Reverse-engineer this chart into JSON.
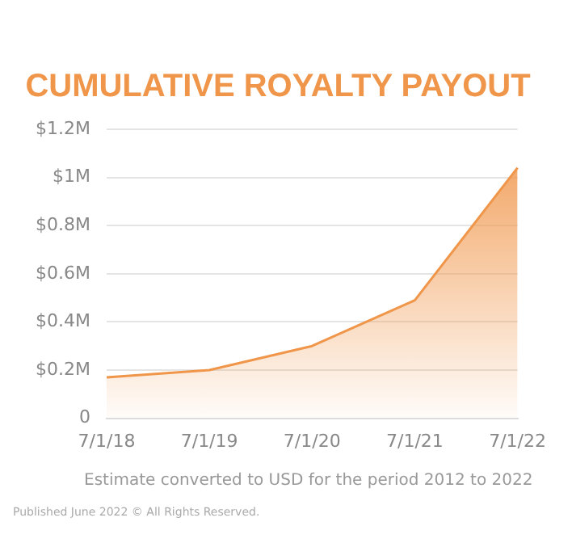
{
  "chart_data": {
    "type": "area",
    "title": "CUMULATIVE ROYALTY PAYOUT",
    "categories": [
      "7/1/18",
      "7/1/19",
      "7/1/20",
      "7/1/21",
      "7/1/22"
    ],
    "series": [
      {
        "color": "#f0964a",
        "values": [
          0.17,
          0.2,
          0.3,
          0.49,
          1.04
        ]
      }
    ],
    "ylim": [
      0,
      1.2
    ],
    "yticks": [
      {
        "value": 0,
        "label": "0"
      },
      {
        "value": 0.2,
        "label": "$0.2M"
      },
      {
        "value": 0.4,
        "label": "$0.4M"
      },
      {
        "value": 0.6,
        "label": "$0.6M"
      },
      {
        "value": 0.8,
        "label": "$0.8M"
      },
      {
        "value": 1,
        "label": "$1M"
      },
      {
        "value": 1.2,
        "label": "$1.2M"
      }
    ],
    "grid": "y",
    "legend": false,
    "marker": "none",
    "annotations": [
      "Estimate converted to USD for the period 2012 to 2022",
      "Published June 2022 © All Rights Reserved."
    ]
  }
}
